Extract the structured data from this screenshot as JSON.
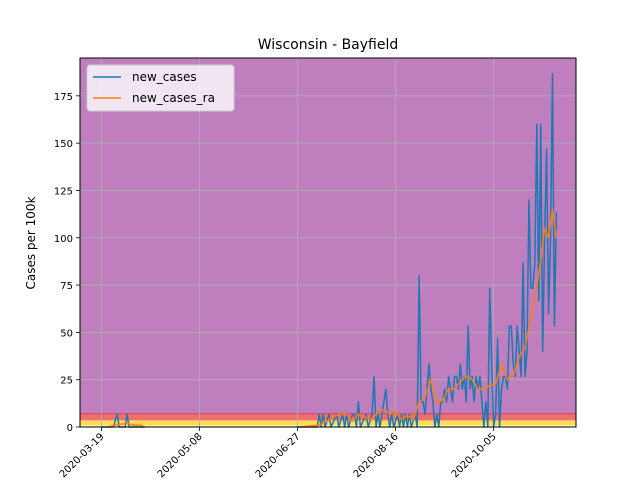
{
  "chart_data": {
    "type": "line",
    "title": "Wisconsin - Bayfield",
    "xlabel": "",
    "ylabel": "Cases per 100k",
    "ylim": [
      0,
      195
    ],
    "xlim": [
      "2020-03-08",
      "2020-11-16"
    ],
    "yticks": [
      0,
      25,
      50,
      75,
      100,
      125,
      150,
      175
    ],
    "xticks": [
      "2020-03-19",
      "2020-05-08",
      "2020-06-27",
      "2020-08-16",
      "2020-10-05"
    ],
    "grid": true,
    "legend": "top-left",
    "background_bands": [
      {
        "from": 0,
        "to": 1,
        "color": "#f5f0a0"
      },
      {
        "from": 1,
        "to": 3.5,
        "color": "#ffdd55"
      },
      {
        "from": 3.5,
        "to": 7,
        "color": "#ef6f6f"
      },
      {
        "from": 7,
        "to": 195,
        "color": "#bf7fbf"
      }
    ],
    "series": [
      {
        "name": "new_cases",
        "color": "#1f77b4",
        "points": [
          [
            "2020-03-19",
            0
          ],
          [
            "2020-03-25",
            0
          ],
          [
            "2020-03-27",
            6.7
          ],
          [
            "2020-03-28",
            0
          ],
          [
            "2020-03-31",
            0
          ],
          [
            "2020-04-01",
            6.7
          ],
          [
            "2020-04-02",
            0
          ],
          [
            "2020-04-10",
            0
          ],
          [
            "2020-06-27",
            0
          ],
          [
            "2020-07-07",
            0
          ],
          [
            "2020-07-08",
            6.7
          ],
          [
            "2020-07-09",
            0
          ],
          [
            "2020-07-10",
            6.7
          ],
          [
            "2020-07-11",
            0
          ],
          [
            "2020-07-13",
            6.7
          ],
          [
            "2020-07-14",
            0
          ],
          [
            "2020-07-17",
            6.7
          ],
          [
            "2020-07-18",
            0
          ],
          [
            "2020-07-20",
            6.7
          ],
          [
            "2020-07-21",
            0
          ],
          [
            "2020-07-22",
            6.7
          ],
          [
            "2020-07-23",
            0
          ],
          [
            "2020-07-25",
            6.7
          ],
          [
            "2020-07-26",
            6.7
          ],
          [
            "2020-07-27",
            0
          ],
          [
            "2020-07-28",
            13.3
          ],
          [
            "2020-07-29",
            0
          ],
          [
            "2020-08-01",
            6.7
          ],
          [
            "2020-08-02",
            0
          ],
          [
            "2020-08-04",
            6.7
          ],
          [
            "2020-08-05",
            26.7
          ],
          [
            "2020-08-06",
            0
          ],
          [
            "2020-08-07",
            6.7
          ],
          [
            "2020-08-08",
            0
          ],
          [
            "2020-08-10",
            13.3
          ],
          [
            "2020-08-11",
            20
          ],
          [
            "2020-08-12",
            6.7
          ],
          [
            "2020-08-13",
            0
          ],
          [
            "2020-08-14",
            6.7
          ],
          [
            "2020-08-15",
            0
          ],
          [
            "2020-08-17",
            6.7
          ],
          [
            "2020-08-18",
            0
          ],
          [
            "2020-08-19",
            6.7
          ],
          [
            "2020-08-20",
            0
          ],
          [
            "2020-08-21",
            6.7
          ],
          [
            "2020-08-22",
            0
          ],
          [
            "2020-08-23",
            6.7
          ],
          [
            "2020-08-24",
            0
          ],
          [
            "2020-08-26",
            6.7
          ],
          [
            "2020-08-27",
            0
          ],
          [
            "2020-08-28",
            80
          ],
          [
            "2020-08-29",
            13.3
          ],
          [
            "2020-08-30",
            13.3
          ],
          [
            "2020-08-31",
            6.7
          ],
          [
            "2020-09-01",
            20
          ],
          [
            "2020-09-02",
            33.3
          ],
          [
            "2020-09-03",
            20
          ],
          [
            "2020-09-04",
            13.3
          ],
          [
            "2020-09-05",
            0
          ],
          [
            "2020-09-06",
            6.7
          ],
          [
            "2020-09-07",
            0
          ],
          [
            "2020-09-08",
            13.3
          ],
          [
            "2020-09-09",
            13.3
          ],
          [
            "2020-09-10",
            20
          ],
          [
            "2020-09-11",
            13.3
          ],
          [
            "2020-09-12",
            26.7
          ],
          [
            "2020-09-13",
            20
          ],
          [
            "2020-09-14",
            13.3
          ],
          [
            "2020-09-15",
            26.7
          ],
          [
            "2020-09-16",
            26.7
          ],
          [
            "2020-09-17",
            20
          ],
          [
            "2020-09-18",
            33.3
          ],
          [
            "2020-09-19",
            20
          ],
          [
            "2020-09-20",
            26.7
          ],
          [
            "2020-09-21",
            13.3
          ],
          [
            "2020-09-22",
            53.3
          ],
          [
            "2020-09-23",
            20
          ],
          [
            "2020-09-24",
            26.7
          ],
          [
            "2020-09-25",
            13.3
          ],
          [
            "2020-09-26",
            26.7
          ],
          [
            "2020-09-27",
            20
          ],
          [
            "2020-09-28",
            26.7
          ],
          [
            "2020-09-29",
            13.3
          ],
          [
            "2020-09-30",
            0
          ],
          [
            "2020-10-01",
            13.3
          ],
          [
            "2020-10-02",
            0
          ],
          [
            "2020-10-03",
            73.3
          ],
          [
            "2020-10-04",
            33.3
          ],
          [
            "2020-10-05",
            0
          ],
          [
            "2020-10-06",
            6.7
          ],
          [
            "2020-10-07",
            46.7
          ],
          [
            "2020-10-08",
            0
          ],
          [
            "2020-10-09",
            20
          ],
          [
            "2020-10-10",
            26.7
          ],
          [
            "2020-10-11",
            26.7
          ],
          [
            "2020-10-12",
            20
          ],
          [
            "2020-10-13",
            53.3
          ],
          [
            "2020-10-14",
            53.3
          ],
          [
            "2020-10-15",
            33.3
          ],
          [
            "2020-10-16",
            26.7
          ],
          [
            "2020-10-17",
            53.3
          ],
          [
            "2020-10-18",
            40
          ],
          [
            "2020-10-19",
            26.7
          ],
          [
            "2020-10-20",
            86.7
          ],
          [
            "2020-10-21",
            26.7
          ],
          [
            "2020-10-22",
            40
          ],
          [
            "2020-10-23",
            120
          ],
          [
            "2020-10-24",
            73.3
          ],
          [
            "2020-10-25",
            73.3
          ],
          [
            "2020-10-26",
            86.7
          ],
          [
            "2020-10-27",
            160
          ],
          [
            "2020-10-28",
            66.7
          ],
          [
            "2020-10-29",
            160
          ],
          [
            "2020-10-30",
            40
          ],
          [
            "2020-10-31",
            100
          ],
          [
            "2020-11-01",
            146.7
          ],
          [
            "2020-11-02",
            60
          ],
          [
            "2020-11-03",
            100
          ],
          [
            "2020-11-04",
            186.7
          ],
          [
            "2020-11-05",
            53.3
          ],
          [
            "2020-11-06",
            113.3
          ]
        ]
      },
      {
        "name": "new_cases_ra",
        "color": "#ff7f0e",
        "points": [
          [
            "2020-03-22",
            0
          ],
          [
            "2020-03-26",
            1
          ],
          [
            "2020-04-01",
            2
          ],
          [
            "2020-04-04",
            1
          ],
          [
            "2020-04-08",
            1
          ],
          [
            "2020-04-10",
            0
          ],
          [
            "2020-06-27",
            0
          ],
          [
            "2020-07-08",
            1
          ],
          [
            "2020-07-12",
            3
          ],
          [
            "2020-07-15",
            5
          ],
          [
            "2020-07-18",
            6.7
          ],
          [
            "2020-07-22",
            6.7
          ],
          [
            "2020-07-25",
            3
          ],
          [
            "2020-07-28",
            6.7
          ],
          [
            "2020-08-01",
            5
          ],
          [
            "2020-08-04",
            4
          ],
          [
            "2020-08-07",
            8
          ],
          [
            "2020-08-10",
            9
          ],
          [
            "2020-08-13",
            7
          ],
          [
            "2020-08-16",
            8
          ],
          [
            "2020-08-19",
            4
          ],
          [
            "2020-08-22",
            6
          ],
          [
            "2020-08-25",
            4
          ],
          [
            "2020-08-28",
            13
          ],
          [
            "2020-08-31",
            16
          ],
          [
            "2020-09-03",
            25
          ],
          [
            "2020-09-06",
            13
          ],
          [
            "2020-09-09",
            14
          ],
          [
            "2020-09-12",
            20
          ],
          [
            "2020-09-15",
            20
          ],
          [
            "2020-09-18",
            24
          ],
          [
            "2020-09-21",
            27
          ],
          [
            "2020-09-24",
            25
          ],
          [
            "2020-09-27",
            20
          ],
          [
            "2020-09-30",
            20
          ],
          [
            "2020-10-03",
            22
          ],
          [
            "2020-10-06",
            23
          ],
          [
            "2020-10-09",
            33
          ],
          [
            "2020-10-12",
            25
          ],
          [
            "2020-10-15",
            27
          ],
          [
            "2020-10-18",
            37
          ],
          [
            "2020-10-21",
            42
          ],
          [
            "2020-10-24",
            58
          ],
          [
            "2020-10-27",
            75
          ],
          [
            "2020-10-29",
            88
          ],
          [
            "2020-10-31",
            105
          ],
          [
            "2020-11-02",
            100
          ],
          [
            "2020-11-04",
            115
          ],
          [
            "2020-11-06",
            100
          ]
        ]
      }
    ]
  }
}
